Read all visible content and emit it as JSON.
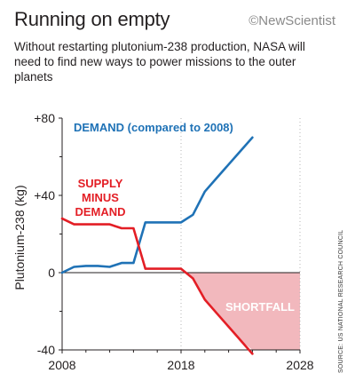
{
  "header": {
    "title": "Running on empty",
    "brand": "©NewScientist",
    "subtitle": "Without restarting plutonium-238 production, NASA will need to find new ways to power missions to the outer planets"
  },
  "source": "SOURCE: US NATIONAL RESEARCH COUNCIL",
  "chart_data": {
    "type": "line",
    "xlim": [
      2008,
      2028
    ],
    "ylim": [
      -40,
      80
    ],
    "x_ticks": [
      "2008",
      "2018",
      "2028"
    ],
    "y_ticks": [
      "+80",
      "+40",
      "0",
      "-40"
    ],
    "ylabel": "Plutonium-238 (kg)",
    "grid": "vertical dotted lines at x ticks; horizontal line at 0",
    "series": [
      {
        "name": "DEMAND (compared to 2008)",
        "color": "#1f72b6",
        "points": [
          [
            2008,
            0
          ],
          [
            2009,
            3
          ],
          [
            2010,
            3.5
          ],
          [
            2011,
            3.5
          ],
          [
            2012,
            3
          ],
          [
            2013,
            5
          ],
          [
            2014,
            5
          ],
          [
            2015,
            26
          ],
          [
            2016,
            26
          ],
          [
            2017,
            26
          ],
          [
            2018,
            26
          ],
          [
            2019,
            30
          ],
          [
            2020,
            42
          ],
          [
            2021,
            49
          ],
          [
            2022,
            56
          ],
          [
            2023,
            63
          ],
          [
            2024,
            70
          ]
        ]
      },
      {
        "name": "SUPPLY MINUS DEMAND",
        "color": "#e31e25",
        "points": [
          [
            2008,
            28
          ],
          [
            2009,
            25
          ],
          [
            2010,
            25
          ],
          [
            2011,
            25
          ],
          [
            2012,
            25
          ],
          [
            2013,
            23
          ],
          [
            2014,
            23
          ],
          [
            2015,
            2
          ],
          [
            2016,
            2
          ],
          [
            2017,
            2
          ],
          [
            2018,
            2
          ],
          [
            2019,
            -3
          ],
          [
            2020,
            -14
          ],
          [
            2021,
            -21
          ],
          [
            2022,
            -28
          ],
          [
            2023,
            -35
          ],
          [
            2024,
            -42
          ]
        ]
      }
    ],
    "annotations": [
      {
        "text": "SHORTFALL",
        "color": "#ffffff",
        "fill": "#f2b8bd"
      }
    ]
  }
}
